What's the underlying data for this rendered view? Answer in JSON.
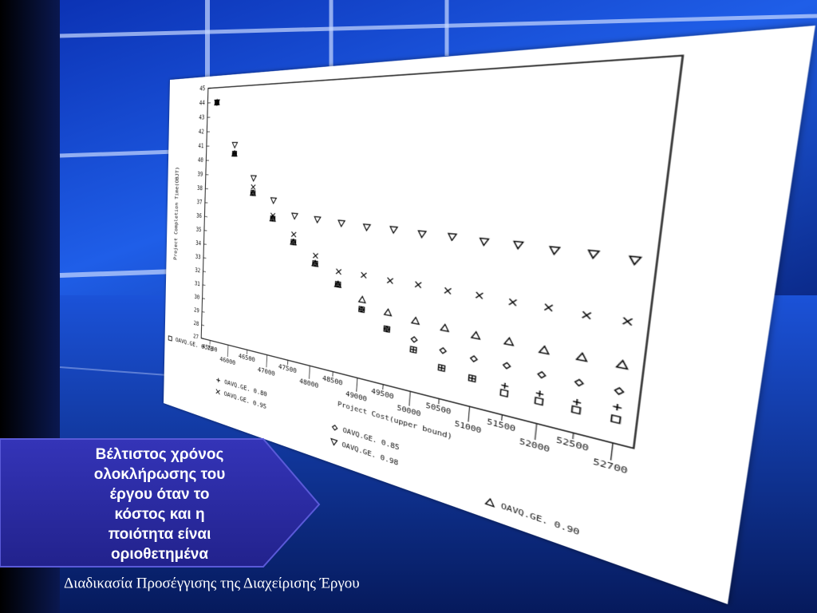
{
  "chart_data": {
    "type": "scatter",
    "xlabel": "Project Cost(upper bound)",
    "ylabel": "Project Completion Time(OBJT)",
    "categories": [
      "45500",
      "46000",
      "46500",
      "47000",
      "47500",
      "48000",
      "48500",
      "49000",
      "49500",
      "50000",
      "50500",
      "51000",
      "51500",
      "52000",
      "52500",
      "52700"
    ],
    "ylim": [
      27,
      45
    ],
    "yticks": [
      27,
      28,
      29,
      30,
      31,
      32,
      33,
      34,
      35,
      36,
      37,
      38,
      39,
      40,
      41,
      42,
      43,
      44,
      45
    ],
    "series": [
      {
        "name": "OAVQ.GE. 0.73",
        "marker": "square",
        "color": "#000000",
        "values": [
          44,
          40.5,
          37.9,
          36.3,
          34.9,
          33.7,
          32.6,
          31.3,
          30.4,
          29.5,
          28.8,
          28.6,
          28.2,
          28.2,
          28.2,
          28.2
        ]
      },
      {
        "name": "OAVQ.GE. 0.80",
        "marker": "plus",
        "color": "#000000",
        "values": [
          44,
          40.5,
          37.9,
          36.3,
          34.9,
          33.7,
          32.6,
          31.3,
          30.4,
          29.5,
          28.8,
          28.6,
          28.6,
          28.6,
          28.6,
          28.8
        ]
      },
      {
        "name": "OAVQ.GE. 0.95",
        "marker": "x",
        "color": "#000000",
        "values": [
          44,
          40.5,
          38.3,
          36.5,
          35.4,
          34.2,
          33.4,
          33.4,
          33.3,
          33.3,
          33.2,
          33.2,
          33.1,
          33.1,
          33.0,
          33.0
        ]
      },
      {
        "name": "OAVQ.GE. 0.85",
        "marker": "diamond",
        "color": "#000000",
        "values": [
          44,
          40.5,
          37.9,
          36.3,
          34.9,
          33.7,
          32.6,
          31.3,
          30.4,
          30.1,
          29.8,
          29.7,
          29.7,
          29.6,
          29.6,
          29.6
        ]
      },
      {
        "name": "OAVQ.GE. 0.98",
        "marker": "triangle-down",
        "color": "#000000",
        "values": [
          44,
          41.1,
          38.9,
          37.5,
          36.6,
          36.5,
          36.4,
          36.3,
          36.3,
          36.2,
          36.2,
          36.1,
          36.1,
          36.0,
          36.0,
          35.9
        ]
      },
      {
        "name": "OAVQ.GE. 0.90",
        "marker": "triangle",
        "color": "#000000",
        "values": [
          44,
          40.5,
          37.9,
          36.3,
          34.9,
          33.7,
          32.6,
          31.9,
          31.4,
          31.2,
          31.1,
          31.0,
          31.0,
          30.9,
          30.9,
          30.9
        ]
      }
    ]
  },
  "callout": [
    "Βέλτιστος χρόνος",
    "ολοκλήρωσης του",
    "έργου όταν το",
    "κόστος και η",
    "ποιότητα είναι",
    "οριοθετημένα"
  ],
  "footer": "Διαδικασία Προσέγγισης της Διαχείρισης Έργου"
}
